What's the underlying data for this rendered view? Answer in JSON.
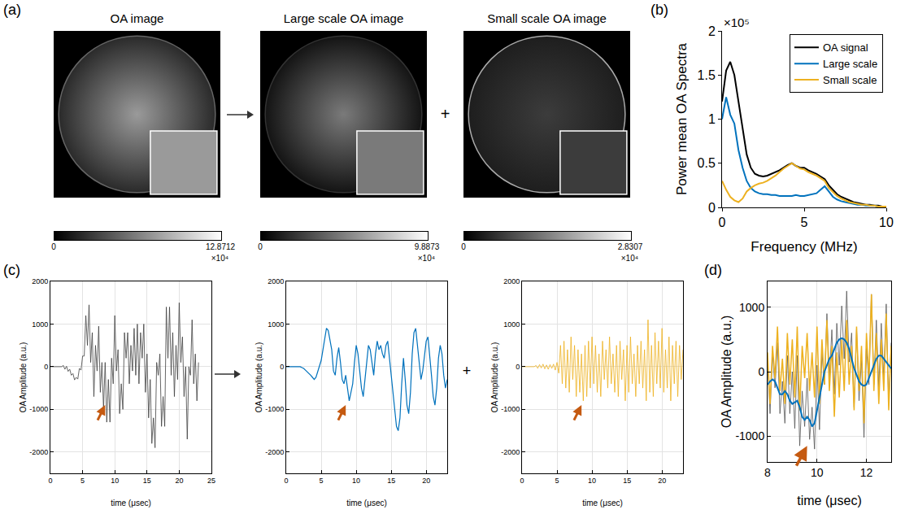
{
  "join_symbol": "+",
  "panel_a": {
    "label": "(a)",
    "images": [
      {
        "title": "OA image",
        "colorbar": {
          "range": [
            0,
            12.8712
          ],
          "ticks": [
            0,
            12.8712
          ],
          "multiplier": "×10⁴"
        }
      },
      {
        "title": "Large scale OA image",
        "colorbar": {
          "range": [
            0,
            9.8873
          ],
          "ticks": [
            0,
            9.8873
          ],
          "multiplier": "×10⁴"
        }
      },
      {
        "title": "Small scale OA image",
        "colorbar": {
          "range": [
            0,
            2.8307
          ],
          "ticks": [
            0,
            2.8307
          ],
          "multiplier": "×10⁴"
        }
      }
    ]
  },
  "chart_data": [
    {
      "label": "(b)",
      "type": "line",
      "x_label": "Frequency (MHz)",
      "y_label": "Power mean OA Spectra",
      "annotations": [
        "×10⁵"
      ],
      "xlim": [
        0,
        10
      ],
      "ylim": [
        0,
        2
      ],
      "xticks": [
        0,
        5,
        10
      ],
      "yticks": [
        0,
        0.5,
        1,
        1.5,
        2
      ],
      "grid": false,
      "legend": "upper right",
      "x": [
        0,
        0.25,
        0.5,
        0.75,
        1,
        1.25,
        1.5,
        1.75,
        2,
        2.25,
        2.5,
        2.75,
        3,
        3.25,
        3.5,
        3.75,
        4,
        4.25,
        4.5,
        4.75,
        5,
        5.25,
        5.5,
        5.75,
        6,
        6.25,
        6.5,
        6.75,
        7,
        7.25,
        7.5,
        7.75,
        8,
        8.25,
        8.5,
        8.75,
        9,
        9.25,
        9.5,
        9.75,
        10
      ],
      "series": [
        {
          "name": "OA signal",
          "color": "#000000",
          "values": [
            1.2,
            1.55,
            1.65,
            1.5,
            1.2,
            0.9,
            0.6,
            0.45,
            0.38,
            0.36,
            0.35,
            0.36,
            0.38,
            0.4,
            0.42,
            0.45,
            0.48,
            0.5,
            0.47,
            0.45,
            0.45,
            0.42,
            0.4,
            0.38,
            0.35,
            0.32,
            0.25,
            0.2,
            0.15,
            0.12,
            0.1,
            0.08,
            0.06,
            0.05,
            0.04,
            0.03,
            0.03,
            0.02,
            0.02,
            0.01,
            0.01
          ]
        },
        {
          "name": "Large scale",
          "color": "#0072bd",
          "values": [
            1.0,
            1.25,
            1.05,
            0.95,
            0.65,
            0.45,
            0.3,
            0.22,
            0.18,
            0.16,
            0.15,
            0.15,
            0.14,
            0.14,
            0.13,
            0.13,
            0.13,
            0.13,
            0.14,
            0.13,
            0.13,
            0.14,
            0.15,
            0.16,
            0.2,
            0.24,
            0.18,
            0.12,
            0.09,
            0.07,
            0.06,
            0.05,
            0.04,
            0.03,
            0.03,
            0.02,
            0.02,
            0.02,
            0.01,
            0.01,
            0.01
          ]
        },
        {
          "name": "Small scale",
          "color": "#edb120",
          "values": [
            0.3,
            0.2,
            0.12,
            0.08,
            0.06,
            0.1,
            0.18,
            0.22,
            0.25,
            0.27,
            0.28,
            0.3,
            0.33,
            0.36,
            0.4,
            0.44,
            0.47,
            0.5,
            0.47,
            0.44,
            0.43,
            0.4,
            0.38,
            0.36,
            0.33,
            0.3,
            0.22,
            0.17,
            0.13,
            0.1,
            0.08,
            0.06,
            0.05,
            0.04,
            0.03,
            0.03,
            0.02,
            0.02,
            0.01,
            0.01,
            0.01
          ]
        }
      ]
    },
    {
      "label": "(c)",
      "type": "line",
      "x_label": "time (μsec)",
      "y_label": "OA Amplitude (a.u.)",
      "xlim": [
        0,
        25
      ],
      "ylim": [
        -2500,
        2000
      ],
      "xticks": [
        0,
        5,
        10,
        15,
        20,
        25
      ],
      "yticks": [
        -2000,
        -1000,
        0,
        1000,
        2000
      ],
      "grid": true,
      "arrow_at": {
        "x": 8.5,
        "y": -900
      },
      "x": [
        0,
        0.25,
        0.5,
        0.75,
        1,
        1.25,
        1.5,
        1.75,
        2,
        2.25,
        2.5,
        2.75,
        3,
        3.25,
        3.5,
        3.75,
        4,
        4.25,
        4.5,
        4.75,
        5,
        5.25,
        5.5,
        5.75,
        6,
        6.25,
        6.5,
        6.75,
        7,
        7.25,
        7.5,
        7.75,
        8,
        8.25,
        8.5,
        8.75,
        9,
        9.25,
        9.5,
        9.75,
        10,
        10.25,
        10.5,
        10.75,
        11,
        11.25,
        11.5,
        11.75,
        12,
        12.25,
        12.5,
        12.75,
        13,
        13.25,
        13.5,
        13.75,
        14,
        14.25,
        14.5,
        14.75,
        15,
        15.25,
        15.5,
        15.75,
        16,
        16.25,
        16.5,
        16.75,
        17,
        17.25,
        17.5,
        17.75,
        18,
        18.25,
        18.5,
        18.75,
        19,
        19.25,
        19.5,
        19.75,
        20,
        20.25,
        20.5,
        20.75,
        21,
        21.25,
        21.5,
        21.75,
        22,
        22.25,
        22.5,
        22.75,
        23
      ],
      "series": [
        {
          "color": "#404040",
          "values": [
            0,
            0,
            0,
            0,
            0,
            0,
            0,
            0,
            30,
            -60,
            10,
            -110,
            -60,
            -200,
            -160,
            -310,
            -250,
            -290,
            -40,
            -80,
            250,
            250,
            1200,
            500,
            1450,
            100,
            800,
            -700,
            500,
            -100,
            950,
            -600,
            100,
            -1000,
            100,
            -1300,
            -300,
            -1300,
            200,
            -400,
            1200,
            -100,
            400,
            -1100,
            -400,
            -1000,
            800,
            200,
            800,
            -400,
            500,
            -100,
            900,
            -200,
            1000,
            -400,
            800,
            200,
            1000,
            -600,
            300,
            -1200,
            -300,
            -1800,
            -1200,
            -1900,
            100,
            -200,
            300,
            -1400,
            -700,
            -1400,
            1400,
            200,
            1400,
            -200,
            800,
            -700,
            500,
            -300,
            1500,
            100,
            700,
            -700,
            0,
            -1700,
            0,
            -200,
            1100,
            -400,
            300,
            -800,
            100
          ]
        }
      ]
    },
    {
      "type": "line",
      "x_label": "time (μsec)",
      "y_label": "OA Amplitude (a.u.)",
      "xlim": [
        0,
        23
      ],
      "ylim": [
        -2500,
        2000
      ],
      "xticks": [
        0,
        5,
        10,
        15,
        20
      ],
      "yticks": [
        -2000,
        -1000,
        0,
        1000,
        2000
      ],
      "grid": true,
      "arrow_at": {
        "x": 8.5,
        "y": -900
      },
      "x": [
        0,
        0.25,
        0.5,
        0.75,
        1,
        1.25,
        1.5,
        1.75,
        2,
        2.25,
        2.5,
        2.75,
        3,
        3.25,
        3.5,
        3.75,
        4,
        4.25,
        4.5,
        4.75,
        5,
        5.25,
        5.5,
        5.75,
        6,
        6.25,
        6.5,
        6.75,
        7,
        7.25,
        7.5,
        7.75,
        8,
        8.25,
        8.5,
        8.75,
        9,
        9.25,
        9.5,
        9.75,
        10,
        10.25,
        10.5,
        10.75,
        11,
        11.25,
        11.5,
        11.75,
        12,
        12.25,
        12.5,
        12.75,
        13,
        13.25,
        13.5,
        13.75,
        14,
        14.25,
        14.5,
        14.75,
        15,
        15.25,
        15.5,
        15.75,
        16,
        16.25,
        16.5,
        16.75,
        17,
        17.25,
        17.5,
        17.75,
        18,
        18.25,
        18.5,
        18.75,
        19,
        19.25,
        19.5,
        19.75,
        20,
        20.25,
        20.5,
        20.75,
        21,
        21.25,
        21.5,
        21.75,
        22,
        22.25,
        22.5,
        22.75,
        23
      ],
      "series": [
        {
          "color": "#0072bd",
          "values": [
            0,
            0,
            0,
            0,
            0,
            0,
            0,
            0,
            0,
            -20,
            -40,
            -80,
            -120,
            -150,
            -200,
            -250,
            -300,
            -250,
            -100,
            0,
            150,
            400,
            700,
            900,
            850,
            600,
            400,
            -100,
            -200,
            200,
            450,
            100,
            -300,
            -400,
            -200,
            -500,
            -800,
            -600,
            -400,
            100,
            500,
            300,
            -100,
            -500,
            -700,
            -300,
            200,
            500,
            400,
            100,
            -200,
            300,
            600,
            400,
            500,
            300,
            200,
            500,
            600,
            200,
            -200,
            -600,
            -1000,
            -1400,
            -1500,
            -1200,
            -400,
            200,
            -300,
            -900,
            -1100,
            -600,
            300,
            800,
            900,
            500,
            0,
            -300,
            -100,
            200,
            600,
            700,
            300,
            -200,
            -700,
            -900,
            -500,
            200,
            500,
            300,
            -200,
            -500,
            -300
          ]
        }
      ]
    },
    {
      "type": "line",
      "x_label": "time (μsec)",
      "y_label": "OA Amplitude (a.u.)",
      "xlim": [
        0,
        23
      ],
      "ylim": [
        -2500,
        2000
      ],
      "xticks": [
        0,
        5,
        10,
        15,
        20
      ],
      "yticks": [
        -2000,
        -1000,
        0,
        1000,
        2000
      ],
      "grid": true,
      "arrow_at": {
        "x": 8.5,
        "y": -900
      },
      "x": [
        0,
        0.25,
        0.5,
        0.75,
        1,
        1.25,
        1.5,
        1.75,
        2,
        2.25,
        2.5,
        2.75,
        3,
        3.25,
        3.5,
        3.75,
        4,
        4.25,
        4.5,
        4.75,
        5,
        5.25,
        5.5,
        5.75,
        6,
        6.25,
        6.5,
        6.75,
        7,
        7.25,
        7.5,
        7.75,
        8,
        8.25,
        8.5,
        8.75,
        9,
        9.25,
        9.5,
        9.75,
        10,
        10.25,
        10.5,
        10.75,
        11,
        11.25,
        11.5,
        11.75,
        12,
        12.25,
        12.5,
        12.75,
        13,
        13.25,
        13.5,
        13.75,
        14,
        14.25,
        14.5,
        14.75,
        15,
        15.25,
        15.5,
        15.75,
        16,
        16.25,
        16.5,
        16.75,
        17,
        17.25,
        17.5,
        17.75,
        18,
        18.25,
        18.5,
        18.75,
        19,
        19.25,
        19.5,
        19.75,
        20,
        20.25,
        20.5,
        20.75,
        21,
        21.25,
        21.5,
        21.75,
        22,
        22.25,
        22.5,
        22.75,
        23
      ],
      "series": [
        {
          "color": "#edb120",
          "values": [
            0,
            0,
            0,
            0,
            0,
            0,
            0,
            0,
            30,
            -40,
            50,
            -30,
            60,
            -50,
            40,
            -60,
            50,
            -40,
            60,
            -80,
            100,
            -150,
            500,
            -400,
            600,
            -500,
            400,
            -600,
            700,
            -300,
            500,
            -700,
            400,
            -600,
            300,
            -800,
            500,
            -700,
            600,
            -500,
            700,
            -400,
            500,
            -600,
            300,
            -700,
            600,
            -300,
            400,
            -500,
            700,
            -400,
            300,
            -600,
            500,
            -700,
            600,
            -300,
            400,
            -800,
            500,
            -600,
            700,
            -400,
            300,
            -700,
            500,
            -400,
            600,
            -500,
            400,
            -800,
            1100,
            -600,
            500,
            -700,
            800,
            -400,
            600,
            -500,
            900,
            -600,
            400,
            -500,
            700,
            -800,
            500,
            -400,
            600,
            -700,
            500,
            -300,
            400
          ]
        }
      ]
    },
    {
      "label": "(d)",
      "type": "line",
      "x_label": "time (μsec)",
      "y_label": "OA Amplitude (a.u.)",
      "xlim": [
        8,
        13
      ],
      "ylim": [
        -1400,
        1400
      ],
      "xticks": [
        8,
        10,
        12
      ],
      "yticks": [
        -1000,
        0,
        1000
      ],
      "grid": true,
      "arrow_at": {
        "x": 9.6,
        "y": -1150
      },
      "x": [
        8,
        8.1,
        8.2,
        8.3,
        8.4,
        8.5,
        8.6,
        8.7,
        8.8,
        8.9,
        9,
        9.1,
        9.2,
        9.3,
        9.4,
        9.5,
        9.6,
        9.7,
        9.8,
        9.9,
        10,
        10.1,
        10.2,
        10.3,
        10.4,
        10.5,
        10.6,
        10.7,
        10.8,
        10.9,
        11,
        11.1,
        11.2,
        11.3,
        11.4,
        11.5,
        11.6,
        11.7,
        11.8,
        11.9,
        12,
        12.1,
        12.2,
        12.3,
        12.4,
        12.5,
        12.6,
        12.7,
        12.8,
        12.9,
        13
      ],
      "series": [
        {
          "color": "#555555",
          "values": [
            100,
            -650,
            280,
            -250,
            450,
            -650,
            -150,
            -800,
            250,
            -650,
            0,
            -880,
            250,
            -1150,
            -300,
            -850,
            -100,
            -1050,
            -550,
            -1200,
            100,
            -900,
            300,
            -200,
            900,
            -100,
            650,
            -350,
            750,
            100,
            1020,
            200,
            1250,
            150,
            600,
            -550,
            650,
            -450,
            200,
            -1020,
            400,
            -200,
            1200,
            -200,
            800,
            -250,
            750,
            -100,
            1050,
            -500,
            450
          ]
        },
        {
          "color": "#edb120",
          "values": [
            300,
            -500,
            400,
            -100,
            700,
            -300,
            200,
            -500,
            600,
            -200,
            500,
            -400,
            700,
            -600,
            400,
            -100,
            600,
            -300,
            300,
            -400,
            700,
            -500,
            500,
            -200,
            800,
            -300,
            400,
            -700,
            300,
            -400,
            500,
            -300,
            800,
            -200,
            400,
            -600,
            700,
            -300,
            400,
            -800,
            600,
            -100,
            1200,
            -300,
            600,
            -500,
            500,
            -300,
            900,
            -600,
            400
          ]
        },
        {
          "color": "#0072bd",
          "values": [
            -200,
            -150,
            -120,
            -150,
            -250,
            -350,
            -350,
            -300,
            -350,
            -450,
            -500,
            -480,
            -450,
            -550,
            -700,
            -750,
            -700,
            -750,
            -850,
            -800,
            -600,
            -400,
            -200,
            0,
            100,
            200,
            250,
            350,
            450,
            500,
            520,
            500,
            450,
            350,
            200,
            50,
            -50,
            -150,
            -200,
            -220,
            -200,
            -100,
            0,
            100,
            200,
            250,
            250,
            200,
            150,
            100,
            50
          ]
        }
      ]
    }
  ]
}
